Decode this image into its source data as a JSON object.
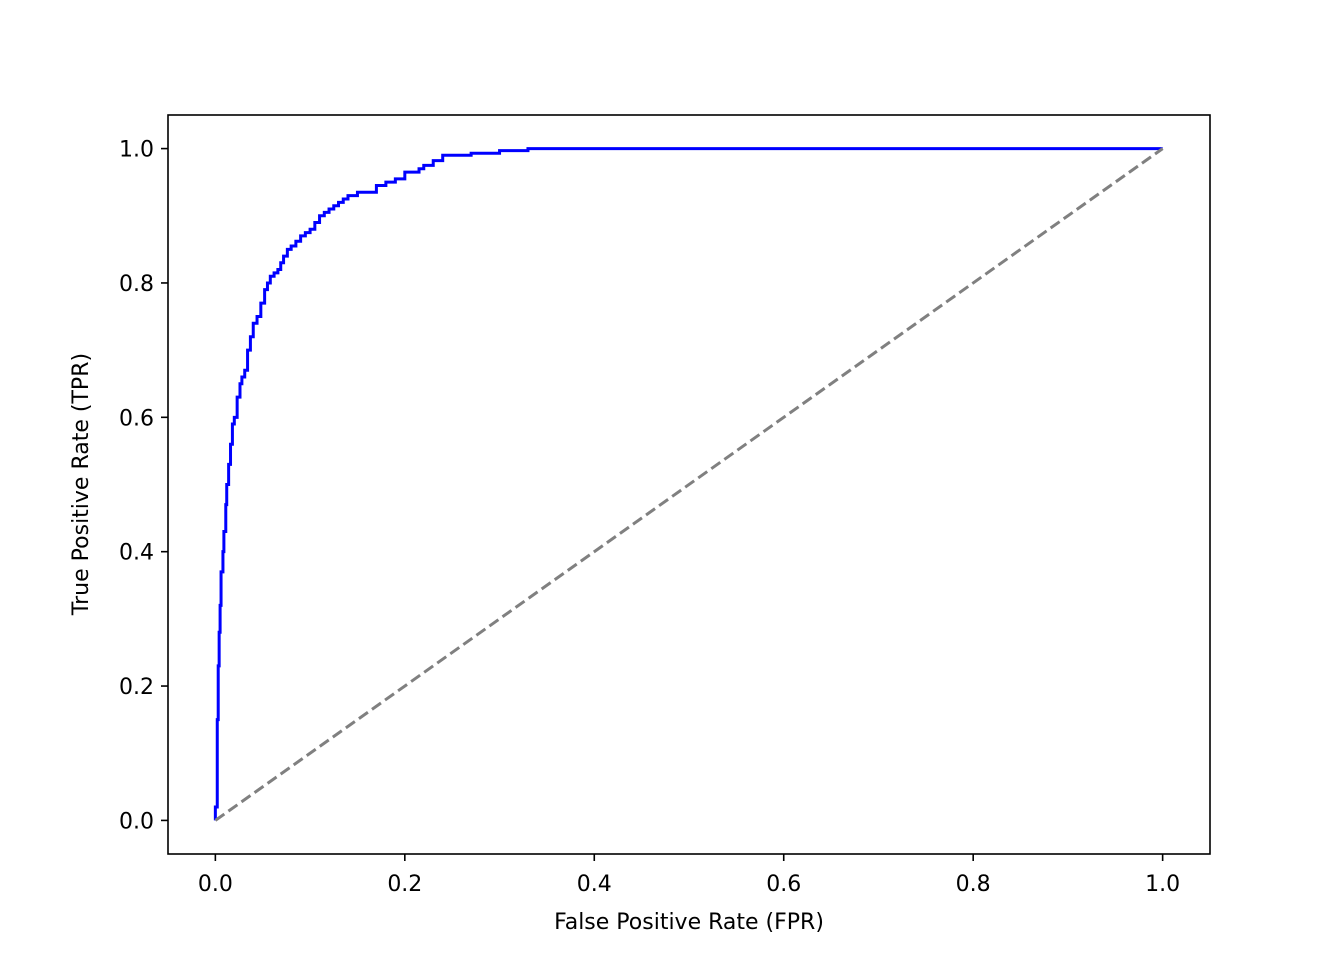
{
  "chart_data": {
    "type": "line",
    "title": "",
    "xlabel": "False Positive Rate (FPR)",
    "ylabel": "True Positive Rate (TPR)",
    "xlim": [
      -0.05,
      1.05
    ],
    "ylim": [
      -0.05,
      1.05
    ],
    "grid": false,
    "x_ticks": [
      0.0,
      0.2,
      0.4,
      0.6,
      0.8,
      1.0
    ],
    "x_tick_labels": [
      "0.0",
      "0.2",
      "0.4",
      "0.6",
      "0.8",
      "1.0"
    ],
    "y_ticks": [
      0.0,
      0.2,
      0.4,
      0.6,
      0.8,
      1.0
    ],
    "y_tick_labels": [
      "0.0",
      "0.2",
      "0.4",
      "0.6",
      "0.8",
      "1.0"
    ],
    "series": [
      {
        "color": "#0000ff",
        "style": "solid",
        "x": [
          0.0,
          0.0,
          0.002,
          0.003,
          0.004,
          0.005,
          0.006,
          0.008,
          0.009,
          0.011,
          0.012,
          0.014,
          0.016,
          0.018,
          0.02,
          0.023,
          0.026,
          0.028,
          0.031,
          0.034,
          0.037,
          0.04,
          0.044,
          0.048,
          0.052,
          0.055,
          0.058,
          0.062,
          0.066,
          0.069,
          0.072,
          0.076,
          0.08,
          0.085,
          0.09,
          0.095,
          0.1,
          0.105,
          0.11,
          0.115,
          0.12,
          0.125,
          0.13,
          0.135,
          0.14,
          0.15,
          0.16,
          0.17,
          0.18,
          0.19,
          0.2,
          0.215,
          0.22,
          0.23,
          0.24,
          0.25,
          0.26,
          0.27,
          0.3,
          0.33,
          0.37,
          0.4,
          0.45,
          0.52,
          0.58,
          0.62,
          0.7,
          0.8,
          0.9,
          1.0
        ],
        "y": [
          0.0,
          0.02,
          0.15,
          0.23,
          0.28,
          0.32,
          0.37,
          0.4,
          0.43,
          0.47,
          0.5,
          0.53,
          0.56,
          0.59,
          0.6,
          0.63,
          0.65,
          0.66,
          0.67,
          0.7,
          0.72,
          0.74,
          0.75,
          0.77,
          0.79,
          0.8,
          0.81,
          0.815,
          0.82,
          0.83,
          0.84,
          0.85,
          0.855,
          0.862,
          0.87,
          0.875,
          0.88,
          0.89,
          0.9,
          0.905,
          0.91,
          0.915,
          0.92,
          0.925,
          0.93,
          0.935,
          0.935,
          0.945,
          0.95,
          0.955,
          0.965,
          0.97,
          0.975,
          0.982,
          0.99,
          0.99,
          0.99,
          0.993,
          0.997,
          1.0,
          1.0,
          1.0,
          1.0,
          1.0,
          1.0,
          1.0,
          1.0,
          1.0,
          1.0,
          1.0
        ]
      },
      {
        "color": "#808080",
        "style": "dashed",
        "x": [
          0.0,
          1.0
        ],
        "y": [
          0.0,
          1.0
        ]
      }
    ]
  }
}
